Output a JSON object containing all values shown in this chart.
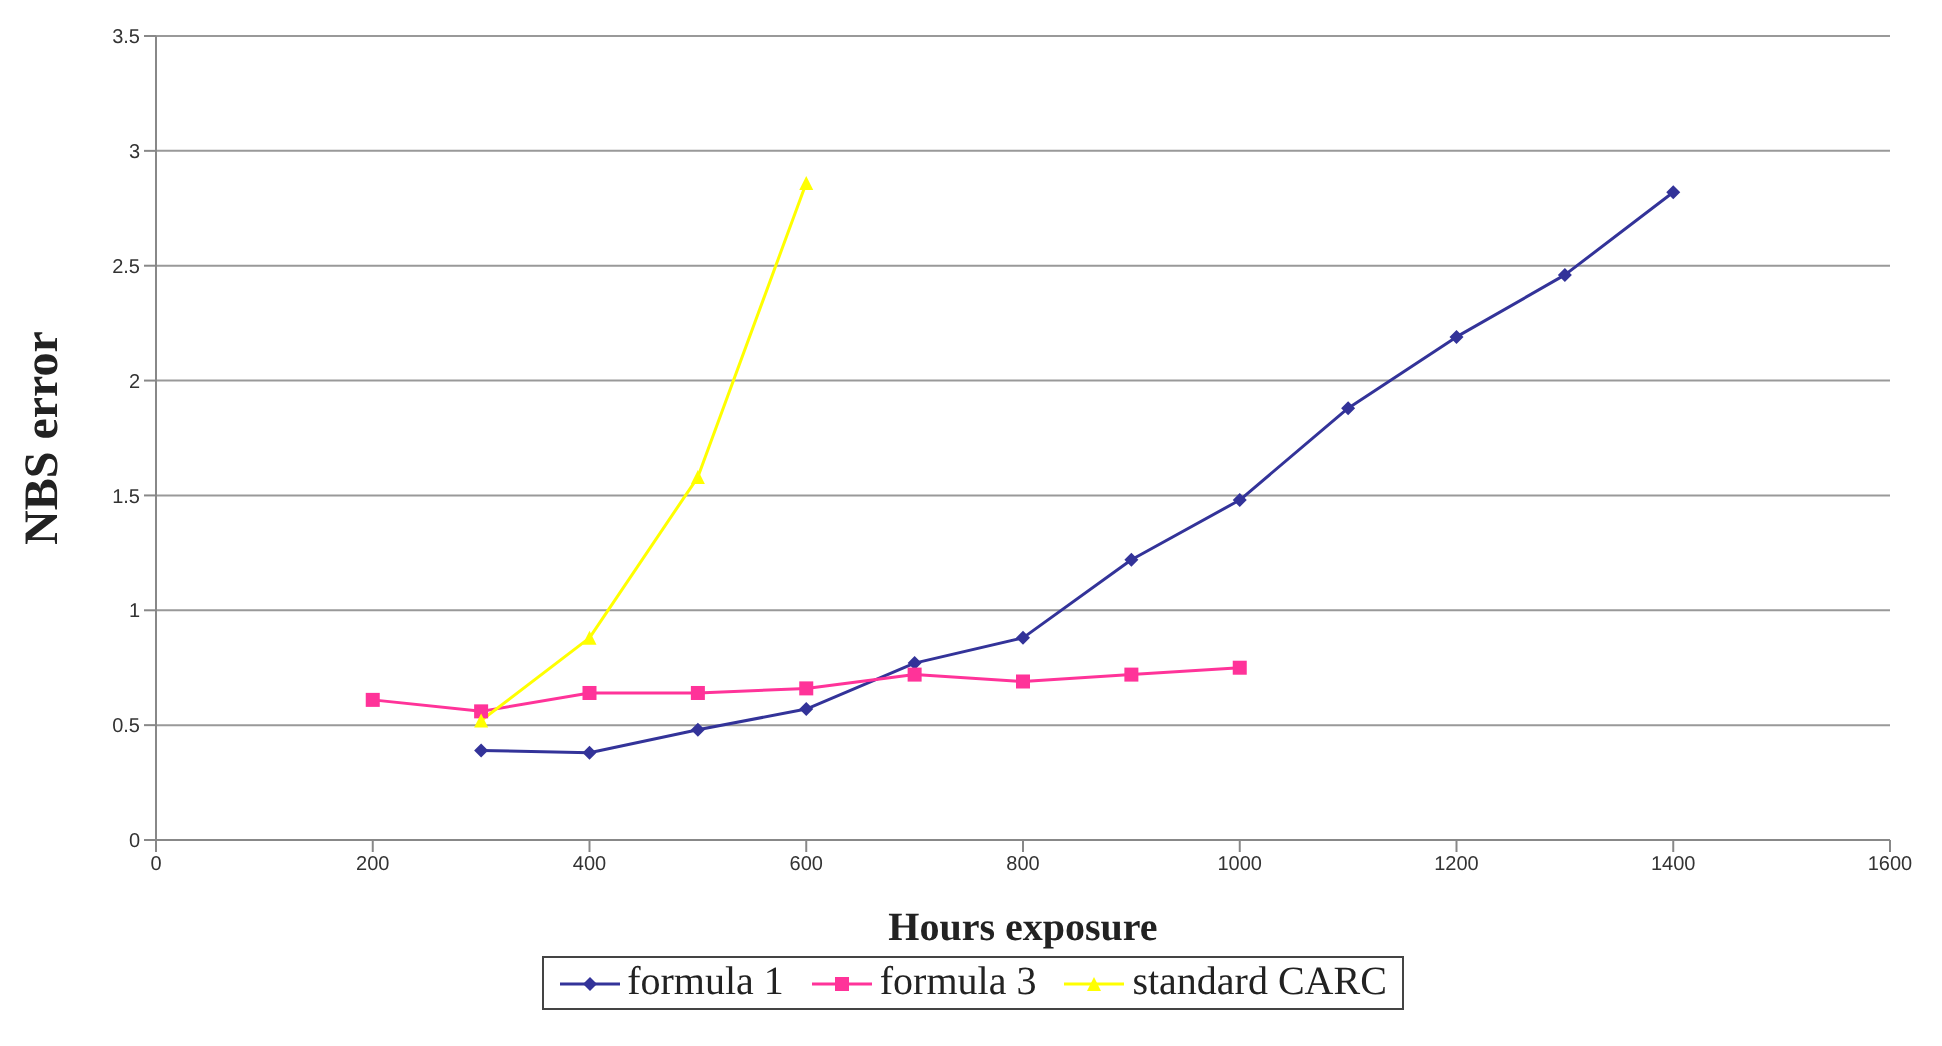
{
  "chart_data": {
    "type": "line",
    "xlabel": "Hours exposure",
    "ylabel": "NBS error",
    "xlim": [
      0,
      1600
    ],
    "xticks": [
      0,
      200,
      400,
      600,
      800,
      1000,
      1200,
      1400,
      1600
    ],
    "ylim": [
      0,
      3.5
    ],
    "yticks": [
      0,
      0.5,
      1,
      1.5,
      2,
      2.5,
      3,
      3.5
    ],
    "grid": "y",
    "legend": "bottom",
    "series": [
      {
        "name": "formula 1",
        "color": "#333399",
        "marker": "diamond",
        "x": [
          300,
          400,
          500,
          600,
          700,
          800,
          900,
          1000,
          1100,
          1200,
          1300,
          1400
        ],
        "values": [
          0.39,
          0.38,
          0.48,
          0.57,
          0.77,
          0.88,
          1.22,
          1.48,
          1.88,
          2.19,
          2.46,
          2.82
        ]
      },
      {
        "name": "formula 3",
        "color": "#ff3399",
        "marker": "square",
        "x": [
          200,
          300,
          400,
          500,
          600,
          700,
          800,
          900,
          1000
        ],
        "values": [
          0.61,
          0.56,
          0.64,
          0.64,
          0.66,
          0.72,
          0.69,
          0.72,
          0.75
        ]
      },
      {
        "name": "standard CARC",
        "color": "#ffff00",
        "marker": "triangle",
        "x": [
          300,
          400,
          500,
          600
        ],
        "values": [
          0.52,
          0.88,
          1.58,
          2.86
        ]
      }
    ]
  }
}
